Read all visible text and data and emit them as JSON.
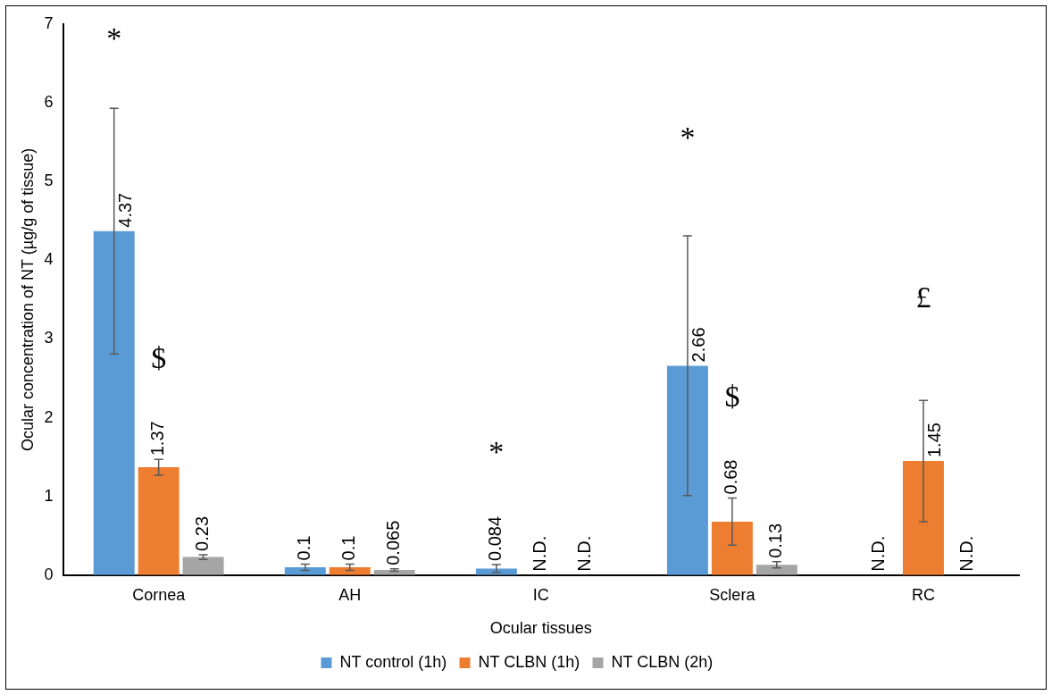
{
  "chart_data": {
    "type": "bar",
    "xlabel": "Ocular tissues",
    "ylabel": "Ocular concentration of NT (µg/g of tissue)",
    "categories": [
      "Cornea",
      "AH",
      "IC",
      "Sclera",
      "RC"
    ],
    "series": [
      {
        "name": "NT control (1h)",
        "color": "#5b9bd5",
        "values": [
          4.37,
          0.1,
          0.084,
          2.66,
          null
        ],
        "errors": [
          1.56,
          0.04,
          0.05,
          1.65,
          null
        ],
        "value_labels": [
          "4.37",
          "0.1",
          "0.084",
          "2.66",
          "N.D."
        ]
      },
      {
        "name": "NT CLBN (1h)",
        "color": "#ed7d31",
        "values": [
          1.37,
          0.1,
          null,
          0.68,
          1.45
        ],
        "errors": [
          0.1,
          0.04,
          null,
          0.3,
          0.77
        ],
        "value_labels": [
          "1.37",
          "0.1",
          "N.D.",
          "0.68",
          "1.45"
        ]
      },
      {
        "name": "NT CLBN (2h)",
        "color": "#a5a5a5",
        "values": [
          0.23,
          0.065,
          null,
          0.13,
          null
        ],
        "errors": [
          0.03,
          0.015,
          null,
          0.04,
          null
        ],
        "value_labels": [
          "0.23",
          "0.065",
          "N.D.",
          "0.13",
          "N.D."
        ]
      }
    ],
    "ylim": [
      0,
      7
    ],
    "yticks": [
      0,
      1,
      2,
      3,
      4,
      5,
      6,
      7
    ],
    "grid": false,
    "legend": "bottom",
    "annotations": [
      "*",
      "$",
      "*",
      "*",
      "$",
      "£"
    ]
  }
}
